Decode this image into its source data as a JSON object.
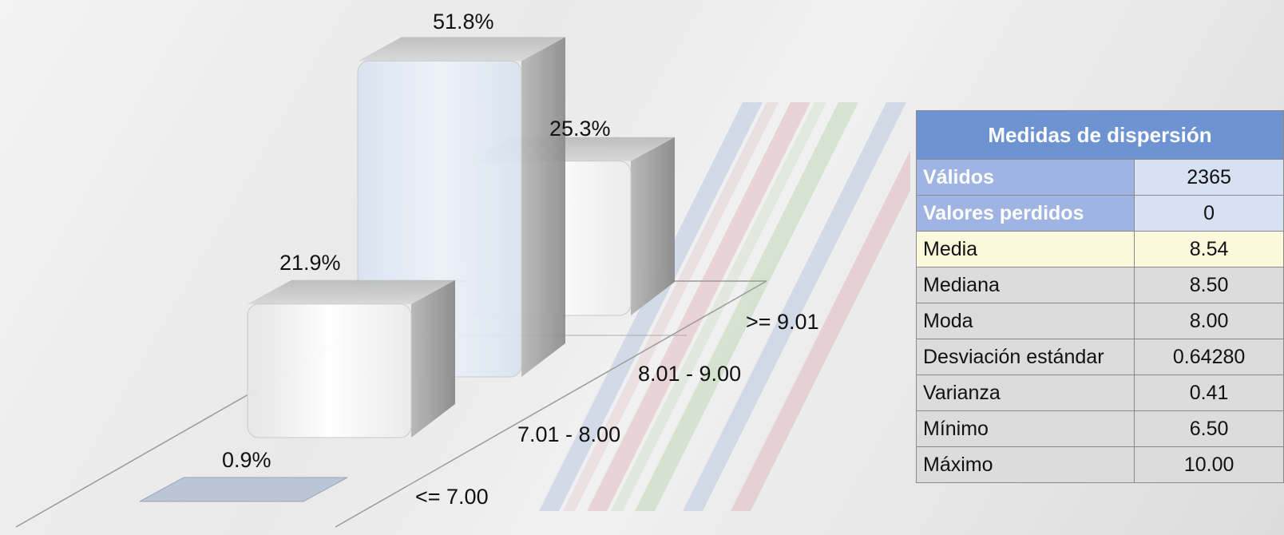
{
  "chart_data": {
    "type": "bar",
    "categories": [
      "<= 7.00",
      "7.01 - 8.00",
      "8.01 - 9.00",
      ">= 9.01"
    ],
    "values": [
      0.9,
      21.9,
      51.8,
      25.3
    ],
    "value_labels": [
      "0.9%",
      "21.9%",
      "51.8%",
      "25.3%"
    ],
    "unit": "%",
    "style": "3d-columns",
    "ylim": [
      0,
      55
    ]
  },
  "stats": {
    "title": "Medidas de dispersión",
    "rows": [
      {
        "label": "Válidos",
        "value": "2365",
        "style": "blue"
      },
      {
        "label": "Valores perdidos",
        "value": "0",
        "style": "blue"
      },
      {
        "label": "Media",
        "value": "8.54",
        "style": "yellow"
      },
      {
        "label": "Mediana",
        "value": "8.50",
        "style": "gray"
      },
      {
        "label": "Moda",
        "value": "8.00",
        "style": "gray"
      },
      {
        "label": "Desviación estándar",
        "value": "0.64280",
        "style": "gray"
      },
      {
        "label": "Varianza",
        "value": "0.41",
        "style": "gray"
      },
      {
        "label": "Mínimo",
        "value": "6.50",
        "style": "gray"
      },
      {
        "label": "Máximo",
        "value": "10.00",
        "style": "gray"
      }
    ]
  },
  "colors": {
    "header": "#6d93d3",
    "key_blue": "#9fb4e2",
    "value_blue": "#d6e1f3",
    "highlight": "#fcf9dd",
    "gray": "#dcdcdc"
  }
}
